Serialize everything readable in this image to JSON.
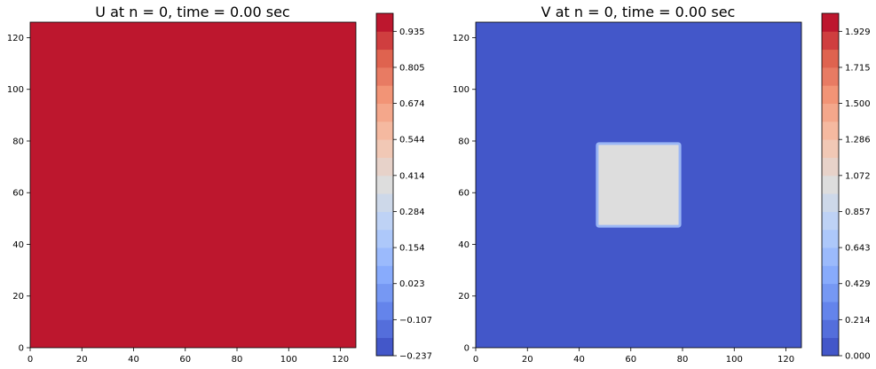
{
  "chart_data": [
    {
      "type": "heatmap",
      "title": "U at n = 0, time = 0.00 sec",
      "xlim": [
        0,
        126
      ],
      "ylim": [
        0,
        126
      ],
      "x_ticks": [
        "0",
        "20",
        "40",
        "60",
        "80",
        "100",
        "120"
      ],
      "y_ticks": [
        "0",
        "20",
        "40",
        "60",
        "80",
        "100",
        "120"
      ],
      "field": {
        "background": 1.0,
        "region": null
      },
      "colorbar": {
        "min": -0.237,
        "max": 1.0,
        "levels": 19,
        "tick_labels": [
          "−0.237",
          "−0.107",
          "0.023",
          "0.154",
          "0.284",
          "0.414",
          "0.544",
          "0.674",
          "0.805",
          "0.935"
        ]
      },
      "colormap": "coolwarm"
    },
    {
      "type": "heatmap",
      "title": "V at n = 0, time = 0.00 sec",
      "xlim": [
        0,
        126
      ],
      "ylim": [
        0,
        126
      ],
      "x_ticks": [
        "0",
        "20",
        "40",
        "60",
        "80",
        "100",
        "120"
      ],
      "y_ticks": [
        "0",
        "20",
        "40",
        "60",
        "80",
        "100",
        "120"
      ],
      "field": {
        "background": 0.0,
        "region": {
          "x": [
            47,
            79
          ],
          "y": [
            47,
            79
          ],
          "value": 1.0
        }
      },
      "colorbar": {
        "min": 0.0,
        "max": 2.0,
        "levels": 19,
        "tick_labels": [
          "0.000",
          "0.214",
          "0.429",
          "0.643",
          "0.857",
          "1.072",
          "1.286",
          "1.500",
          "1.715",
          "1.929"
        ]
      },
      "colormap": "coolwarm"
    }
  ]
}
